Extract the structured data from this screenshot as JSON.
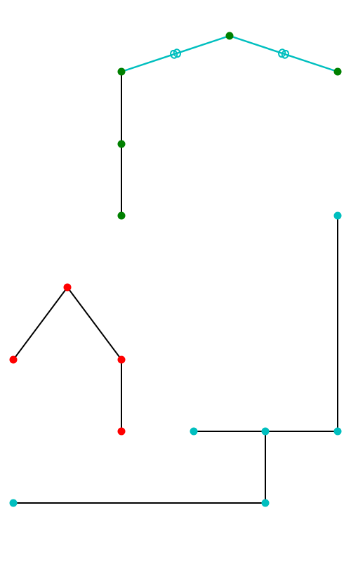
{
  "colors": {
    "green_node": "#008000",
    "red_node": "#ff0000",
    "cyan_node": "#00bfbf",
    "black_edge": "#000000",
    "cyan_edge": "#00bfbf"
  },
  "components": [
    {
      "id": "green-tree",
      "node_color": "green_node",
      "nodes": [
        "g1",
        "g2",
        "g3",
        "g4",
        "g5"
      ],
      "edges": [
        {
          "from": "g1",
          "to": "g2",
          "style": "cyan-linked"
        },
        {
          "from": "g2",
          "to": "g3",
          "style": "cyan-linked"
        },
        {
          "from": "g1",
          "to": "g4",
          "style": "black"
        },
        {
          "from": "g4",
          "to": "g5",
          "style": "black"
        }
      ]
    },
    {
      "id": "red-tree",
      "node_color": "red_node",
      "nodes": [
        "r1",
        "r2",
        "r3",
        "r4"
      ],
      "edges": [
        {
          "from": "r1",
          "to": "r2",
          "style": "black"
        },
        {
          "from": "r1",
          "to": "r3",
          "style": "black"
        },
        {
          "from": "r3",
          "to": "r4",
          "style": "black"
        }
      ]
    },
    {
      "id": "cyan-tree",
      "node_color": "cyan_node",
      "nodes": [
        "c1",
        "c2",
        "c3",
        "c4",
        "c5",
        "c6"
      ],
      "edges": [
        {
          "from": "c1",
          "to": "c2",
          "style": "black"
        },
        {
          "from": "c3",
          "to": "c4",
          "style": "black"
        },
        {
          "from": "c4",
          "to": "c2",
          "style": "black"
        },
        {
          "from": "c4",
          "to": "c5",
          "style": "black"
        },
        {
          "from": "c5",
          "to": "c6",
          "style": "black"
        }
      ]
    }
  ]
}
